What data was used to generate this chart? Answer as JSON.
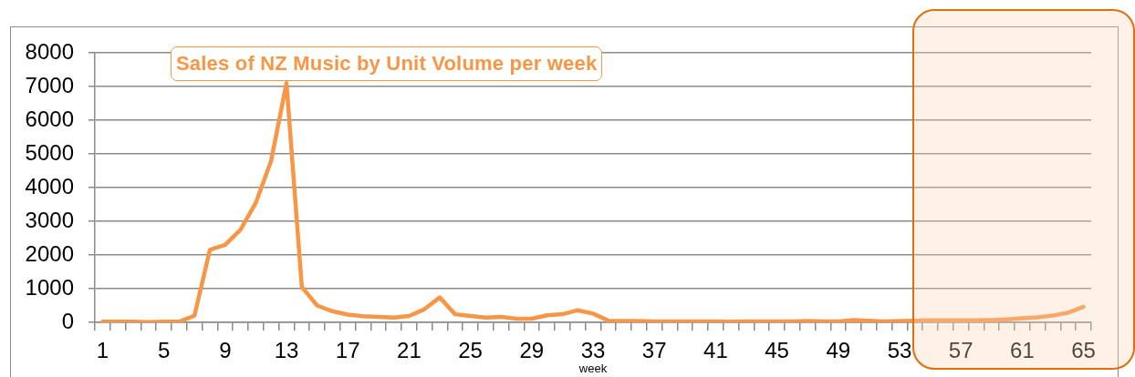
{
  "chart_data": {
    "type": "line",
    "title": "Sales of NZ Music by Unit Volume per week",
    "xlabel": "week",
    "categories": [
      "1",
      null,
      null,
      null,
      "5",
      null,
      null,
      null,
      "9",
      null,
      null,
      null,
      "13",
      null,
      null,
      null,
      "17",
      null,
      null,
      null,
      "21",
      null,
      null,
      null,
      "25",
      null,
      null,
      null,
      "29",
      null,
      null,
      null,
      "33",
      null,
      null,
      null,
      "37",
      null,
      null,
      null,
      "41",
      null,
      null,
      null,
      "45",
      null,
      null,
      null,
      "49",
      null,
      null,
      null,
      "53",
      null,
      null,
      null,
      "57",
      null,
      null,
      null,
      "61",
      null,
      null,
      null,
      "65"
    ],
    "values": [
      20,
      20,
      20,
      10,
      20,
      20,
      200,
      2150,
      2300,
      2750,
      3550,
      4800,
      7100,
      1050,
      500,
      330,
      230,
      180,
      160,
      140,
      190,
      390,
      740,
      240,
      190,
      140,
      160,
      110,
      110,
      210,
      240,
      360,
      260,
      50,
      40,
      40,
      30,
      30,
      30,
      30,
      30,
      20,
      30,
      30,
      30,
      30,
      40,
      30,
      30,
      70,
      50,
      30,
      40,
      50,
      60,
      60,
      60,
      60,
      70,
      90,
      120,
      150,
      200,
      290,
      460
    ],
    "color": "#f79646",
    "ylim": [
      0,
      8000
    ],
    "yticks": [
      0,
      1000,
      2000,
      3000,
      4000,
      5000,
      6000,
      7000,
      8000
    ],
    "grid": "y"
  }
}
